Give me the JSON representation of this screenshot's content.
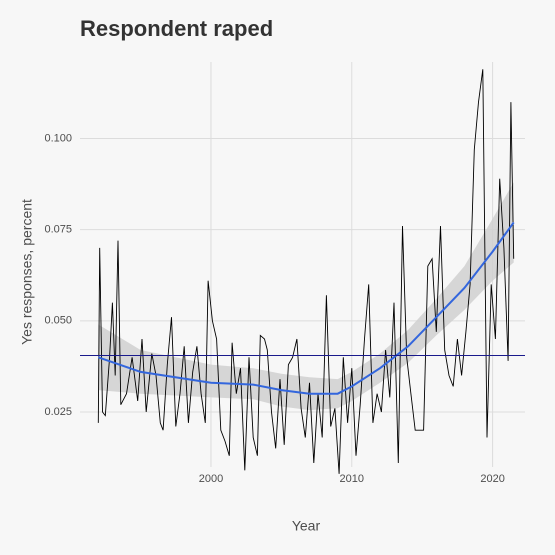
{
  "chart_data": {
    "type": "line",
    "title": "Respondent raped",
    "xlabel": "Year",
    "ylabel": "Yes responses, percent",
    "xlim": [
      1990.7,
      2022.3
    ],
    "ylim": [
      0.0099,
      0.121
    ],
    "xticks": [
      2000,
      2010,
      2020
    ],
    "yticks": [
      0.025,
      {
        "value": 0.05,
        "label": "0.050"
      },
      0.075,
      {
        "value": 0.1,
        "label": "0.100"
      }
    ],
    "grid": true,
    "series": [
      {
        "color": "#000000",
        "x": [
          1992.0,
          1992.1,
          1992.3,
          1992.5,
          1992.8,
          1993.0,
          1993.2,
          1993.4,
          1993.6,
          1994.0,
          1994.4,
          1994.8,
          1995.1,
          1995.4,
          1995.8,
          1996.1,
          1996.4,
          1996.6,
          1996.9,
          1997.2,
          1997.5,
          1997.8,
          1998.1,
          1998.4,
          1998.7,
          1999.0,
          1999.3,
          1999.6,
          1999.8,
          2000.1,
          2000.4,
          2000.7,
          2001.0,
          2001.3,
          2001.5,
          2001.8,
          2002.1,
          2002.4,
          2002.7,
          2003.0,
          2003.3,
          2003.5,
          2003.8,
          2004.0,
          2004.3,
          2004.6,
          2004.9,
          2005.2,
          2005.5,
          2005.8,
          2006.1,
          2006.4,
          2006.7,
          2007.0,
          2007.3,
          2007.6,
          2007.9,
          2008.2,
          2008.5,
          2008.8,
          2009.1,
          2009.4,
          2009.7,
          2010.0,
          2010.3,
          2010.6,
          2010.9,
          2011.2,
          2011.5,
          2011.8,
          2012.1,
          2012.4,
          2012.7,
          2013.0,
          2013.3,
          2013.6,
          2013.9,
          2014.2,
          2014.5,
          2014.8,
          2015.1,
          2015.4,
          2015.7,
          2016.0,
          2016.3,
          2016.6,
          2016.9,
          2017.2,
          2017.5,
          2017.8,
          2018.1,
          2018.4,
          2018.7,
          2019.0,
          2019.3,
          2019.6,
          2019.9,
          2020.2,
          2020.5,
          2020.8,
          2021.1,
          2021.3,
          2021.5
        ],
        "values": [
          0.022,
          0.07,
          0.025,
          0.024,
          0.04,
          0.055,
          0.035,
          0.072,
          0.027,
          0.03,
          0.04,
          0.028,
          0.045,
          0.025,
          0.041,
          0.035,
          0.022,
          0.02,
          0.038,
          0.051,
          0.021,
          0.03,
          0.043,
          0.022,
          0.036,
          0.043,
          0.03,
          0.022,
          0.061,
          0.05,
          0.045,
          0.02,
          0.017,
          0.013,
          0.044,
          0.03,
          0.037,
          0.009,
          0.04,
          0.018,
          0.013,
          0.046,
          0.045,
          0.042,
          0.025,
          0.015,
          0.034,
          0.016,
          0.038,
          0.04,
          0.045,
          0.026,
          0.018,
          0.033,
          0.011,
          0.03,
          0.018,
          0.057,
          0.021,
          0.026,
          0.008,
          0.04,
          0.022,
          0.037,
          0.013,
          0.027,
          0.045,
          0.06,
          0.022,
          0.03,
          0.025,
          0.042,
          0.029,
          0.055,
          0.011,
          0.076,
          0.04,
          0.03,
          0.02,
          0.02,
          0.02,
          0.065,
          0.067,
          0.047,
          0.076,
          0.042,
          0.035,
          0.032,
          0.045,
          0.035,
          0.047,
          0.06,
          0.097,
          0.11,
          0.119,
          0.018,
          0.06,
          0.045,
          0.089,
          0.07,
          0.039,
          0.11,
          0.067
        ]
      },
      {
        "color": "#3366dd",
        "x": [
          1992,
          1995,
          2000,
          2003,
          2005,
          2007,
          2009,
          2010,
          2012,
          2014,
          2016,
          2018,
          2020,
          2021.5
        ],
        "values": [
          0.04,
          0.036,
          0.033,
          0.0325,
          0.031,
          0.03,
          0.03,
          0.032,
          0.037,
          0.043,
          0.051,
          0.059,
          0.069,
          0.077
        ]
      }
    ],
    "band": {
      "color": "#d0d0d0",
      "x": [
        1992,
        1995,
        2000,
        2003,
        2005,
        2007,
        2009,
        2010,
        2012,
        2014,
        2016,
        2018,
        2020,
        2021.5
      ],
      "lower": [
        0.031,
        0.03,
        0.029,
        0.0285,
        0.0265,
        0.0255,
        0.026,
        0.028,
        0.033,
        0.0385,
        0.046,
        0.053,
        0.061,
        0.066
      ],
      "upper": [
        0.049,
        0.042,
        0.038,
        0.037,
        0.0355,
        0.0345,
        0.034,
        0.036,
        0.041,
        0.0475,
        0.056,
        0.065,
        0.078,
        0.088
      ]
    },
    "hline": {
      "value": 0.0405,
      "color": "#1a1a8c"
    }
  }
}
